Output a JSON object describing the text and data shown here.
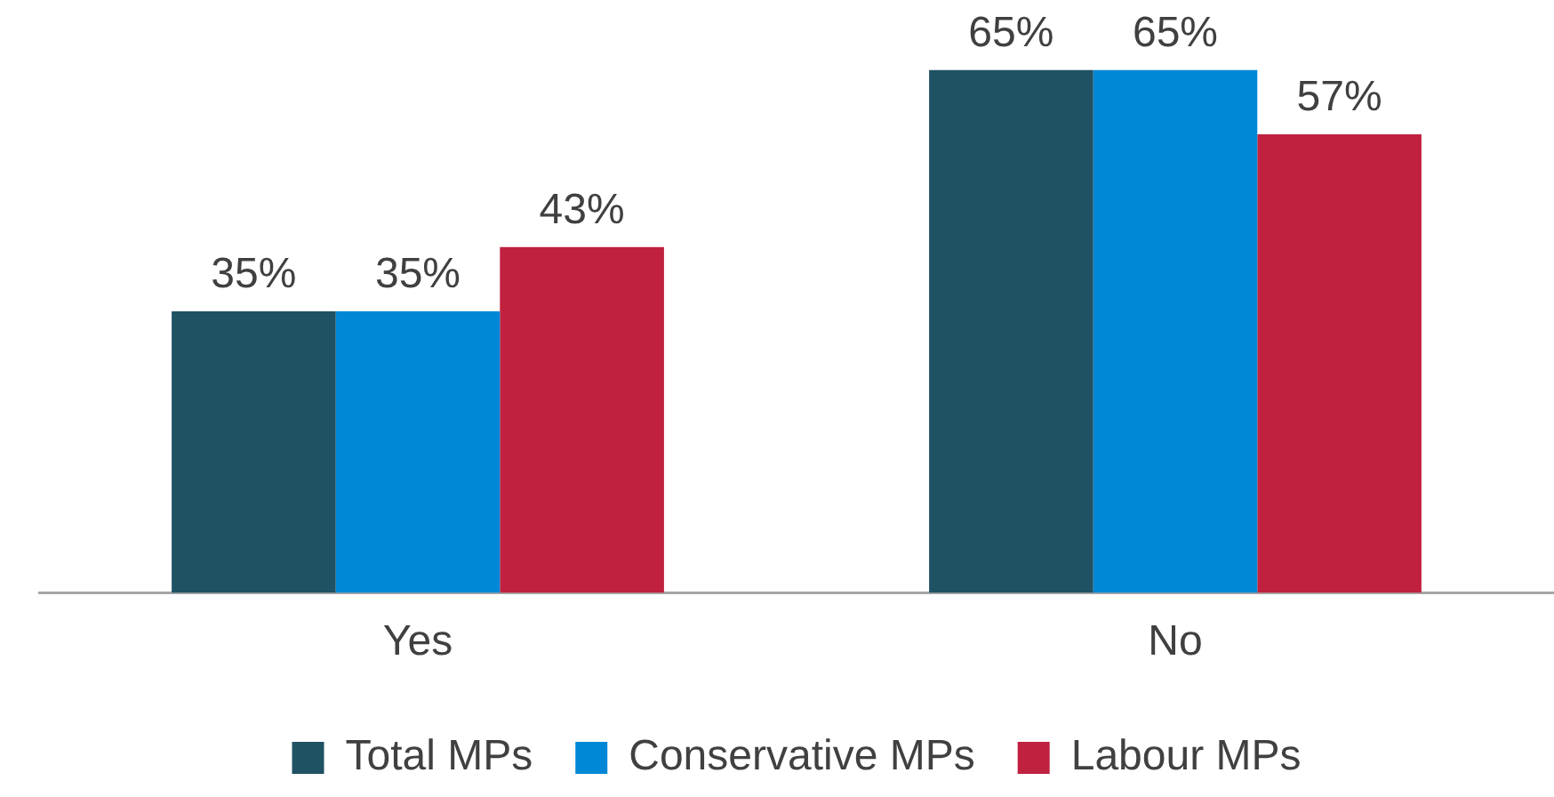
{
  "chart_data": {
    "type": "bar",
    "categories": [
      "Yes",
      "No"
    ],
    "series": [
      {
        "name": "Total MPs",
        "color": "#1f5263",
        "values": [
          35,
          65
        ],
        "value_labels": [
          "35%",
          "65%"
        ]
      },
      {
        "name": "Conservative MPs",
        "color": "#0088d6",
        "values": [
          35,
          65
        ],
        "value_labels": [
          "35%",
          "65%"
        ]
      },
      {
        "name": "Labour MPs",
        "color": "#c0213f",
        "values": [
          43,
          57
        ],
        "value_labels": [
          "43%",
          "57%"
        ]
      }
    ],
    "legend": "bottom",
    "grid": false
  }
}
